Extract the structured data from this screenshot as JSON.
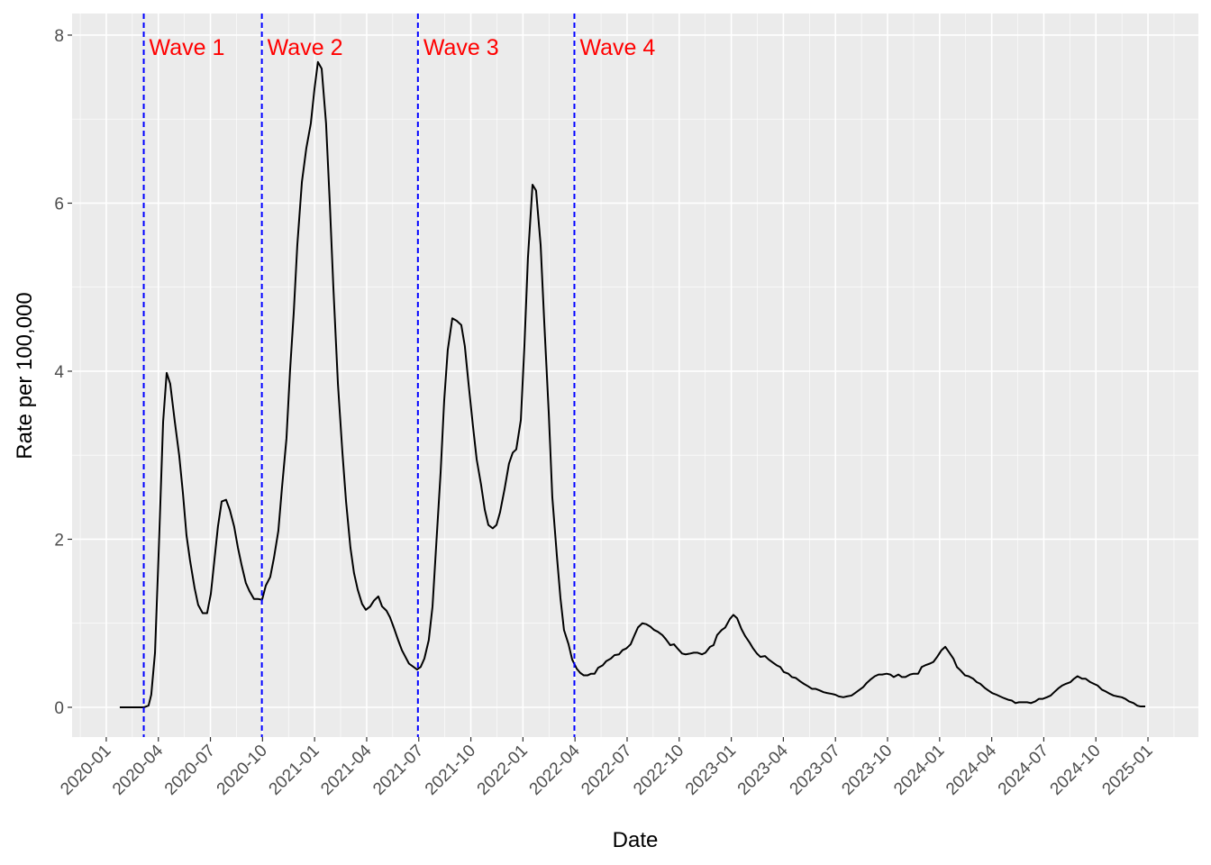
{
  "chart_data": {
    "type": "line",
    "x_label": "Date",
    "y_label": "Rate per 100,000",
    "xlim": [
      2019.836,
      2025.242
    ],
    "ylim": [
      -0.354,
      8.257
    ],
    "xticks": [
      {
        "value": 2020.0,
        "label": "2020-01"
      },
      {
        "value": 2020.25,
        "label": "2020-04"
      },
      {
        "value": 2020.5,
        "label": "2020-07"
      },
      {
        "value": 2020.75,
        "label": "2020-10"
      },
      {
        "value": 2021.0,
        "label": "2021-01"
      },
      {
        "value": 2021.25,
        "label": "2021-04"
      },
      {
        "value": 2021.5,
        "label": "2021-07"
      },
      {
        "value": 2021.75,
        "label": "2021-10"
      },
      {
        "value": 2022.0,
        "label": "2022-01"
      },
      {
        "value": 2022.25,
        "label": "2022-04"
      },
      {
        "value": 2022.5,
        "label": "2022-07"
      },
      {
        "value": 2022.75,
        "label": "2022-10"
      },
      {
        "value": 2023.0,
        "label": "2023-01"
      },
      {
        "value": 2023.25,
        "label": "2023-04"
      },
      {
        "value": 2023.5,
        "label": "2023-07"
      },
      {
        "value": 2023.75,
        "label": "2023-10"
      },
      {
        "value": 2024.0,
        "label": "2024-01"
      },
      {
        "value": 2024.25,
        "label": "2024-04"
      },
      {
        "value": 2024.5,
        "label": "2024-07"
      },
      {
        "value": 2024.75,
        "label": "2024-10"
      },
      {
        "value": 2025.0,
        "label": "2025-01"
      }
    ],
    "yticks": [
      0,
      2,
      4,
      6,
      8
    ],
    "grid": true,
    "color": "#000000",
    "vline_color": "#0000ff",
    "vline_label_color": "#ff0000",
    "vlines": [
      {
        "x": 2020.18,
        "label": "Wave 1"
      },
      {
        "x": 2020.747,
        "label": "Wave 2"
      },
      {
        "x": 2021.496,
        "label": "Wave 3"
      },
      {
        "x": 2022.247,
        "label": "Wave 4"
      }
    ],
    "x": [
      2020.065,
      2020.182,
      2020.203,
      2020.216,
      2020.234,
      2020.251,
      2020.273,
      2020.29,
      2020.307,
      2020.329,
      2020.35,
      2020.368,
      2020.385,
      2020.402,
      2020.424,
      2020.441,
      2020.463,
      2020.484,
      2020.502,
      2020.519,
      2020.536,
      2020.554,
      2020.575,
      2020.593,
      2020.614,
      2020.632,
      2020.649,
      2020.67,
      2020.688,
      2020.709,
      2020.727,
      2020.748,
      2020.766,
      2020.787,
      2020.805,
      2020.826,
      2020.843,
      2020.865,
      2020.882,
      2020.9,
      2020.917,
      2020.939,
      2020.96,
      2020.982,
      2020.999,
      2021.016,
      2021.034,
      2021.055,
      2021.073,
      2021.09,
      2021.112,
      2021.133,
      2021.151,
      2021.172,
      2021.189,
      2021.207,
      2021.228,
      2021.246,
      2021.267,
      2021.285,
      2021.306,
      2021.324,
      2021.345,
      2021.362,
      2021.38,
      2021.401,
      2021.419,
      2021.436,
      2021.453,
      2021.475,
      2021.492,
      2021.509,
      2021.527,
      2021.548,
      2021.566,
      2021.583,
      2021.605,
      2021.622,
      2021.639,
      2021.661,
      2021.682,
      2021.704,
      2021.721,
      2021.739,
      2021.76,
      2021.778,
      2021.799,
      2021.817,
      2021.834,
      2021.855,
      2021.873,
      2021.89,
      2021.912,
      2021.933,
      2021.951,
      2021.968,
      2021.99,
      2022.007,
      2022.024,
      2022.046,
      2022.063,
      2022.085,
      2022.102,
      2022.124,
      2022.141,
      2022.163,
      2022.18,
      2022.197,
      2022.219,
      2022.236,
      2022.258,
      2022.275,
      2022.292,
      2022.31,
      2022.327,
      2022.344,
      2022.361,
      2022.383,
      2022.4,
      2022.422,
      2022.439,
      2022.461,
      2022.478,
      2022.496,
      2022.517,
      2022.534,
      2022.552,
      2022.573,
      2022.591,
      2022.612,
      2022.63,
      2022.647,
      2022.669,
      2022.686,
      2022.707,
      2022.725,
      2022.742,
      2022.764,
      2022.781,
      2022.803,
      2022.82,
      2022.837,
      2022.859,
      2022.876,
      2022.898,
      2022.915,
      2022.932,
      2022.954,
      2022.971,
      2022.993,
      2023.01,
      2023.028,
      2023.049,
      2023.066,
      2023.088,
      2023.105,
      2023.123,
      2023.14,
      2023.162,
      2023.179,
      2023.201,
      2023.218,
      2023.235,
      2023.252,
      2023.274,
      2023.291,
      2023.309,
      2023.33,
      2023.348,
      2023.369,
      2023.387,
      2023.404,
      2023.425,
      2023.443,
      2023.46,
      2023.482,
      2023.499,
      2023.516,
      2023.538,
      2023.555,
      2023.577,
      2023.594,
      2023.611,
      2023.633,
      2023.65,
      2023.668,
      2023.689,
      2023.707,
      2023.724,
      2023.746,
      2023.763,
      2023.78,
      2023.802,
      2023.819,
      2023.836,
      2023.858,
      2023.875,
      2023.897,
      2023.914,
      2023.931,
      2023.953,
      2023.97,
      2023.988,
      2024.009,
      2024.027,
      2024.044,
      2024.066,
      2024.083,
      2024.1,
      2024.122,
      2024.139,
      2024.161,
      2024.178,
      2024.195,
      2024.217,
      2024.234,
      2024.252,
      2024.273,
      2024.29,
      2024.308,
      2024.329,
      2024.347,
      2024.364,
      2024.381,
      2024.403,
      2024.42,
      2024.438,
      2024.459,
      2024.476,
      2024.494,
      2024.515,
      2024.533,
      2024.55,
      2024.572,
      2024.589,
      2024.606,
      2024.628,
      2024.645,
      2024.662,
      2024.684,
      2024.701,
      2024.723,
      2024.74,
      2024.758,
      2024.779,
      2024.796,
      2024.818,
      2024.835,
      2024.853,
      2024.874,
      2024.892,
      2024.909,
      2024.931,
      2024.948,
      2024.965,
      2024.987
    ],
    "values": [
      0,
      0,
      0.02,
      0.15,
      0.65,
      1.8,
      3.4,
      3.98,
      3.85,
      3.4,
      3.0,
      2.55,
      2.05,
      1.75,
      1.42,
      1.22,
      1.12,
      1.12,
      1.35,
      1.75,
      2.15,
      2.45,
      2.47,
      2.35,
      2.15,
      1.9,
      1.7,
      1.48,
      1.38,
      1.29,
      1.29,
      1.28,
      1.45,
      1.55,
      1.78,
      2.1,
      2.6,
      3.2,
      4.0,
      4.7,
      5.5,
      6.25,
      6.65,
      6.95,
      7.35,
      7.68,
      7.6,
      6.95,
      6.0,
      5.0,
      3.85,
      3.05,
      2.45,
      1.9,
      1.6,
      1.4,
      1.23,
      1.16,
      1.2,
      1.27,
      1.32,
      1.2,
      1.15,
      1.07,
      0.95,
      0.8,
      0.68,
      0.6,
      0.52,
      0.48,
      0.45,
      0.48,
      0.58,
      0.8,
      1.2,
      1.9,
      2.8,
      3.65,
      4.25,
      4.63,
      4.6,
      4.55,
      4.3,
      3.85,
      3.35,
      2.95,
      2.65,
      2.35,
      2.17,
      2.13,
      2.17,
      2.32,
      2.6,
      2.9,
      3.03,
      3.07,
      3.42,
      4.3,
      5.35,
      6.22,
      6.15,
      5.5,
      4.6,
      3.5,
      2.5,
      1.8,
      1.3,
      0.92,
      0.75,
      0.57,
      0.46,
      0.41,
      0.38,
      0.38,
      0.4,
      0.4,
      0.47,
      0.5,
      0.55,
      0.58,
      0.62,
      0.63,
      0.68,
      0.7,
      0.75,
      0.85,
      0.95,
      1.0,
      0.99,
      0.96,
      0.92,
      0.9,
      0.86,
      0.81,
      0.74,
      0.75,
      0.7,
      0.64,
      0.63,
      0.64,
      0.65,
      0.65,
      0.63,
      0.65,
      0.72,
      0.74,
      0.86,
      0.92,
      0.95,
      1.05,
      1.1,
      1.06,
      0.93,
      0.85,
      0.77,
      0.7,
      0.64,
      0.6,
      0.61,
      0.57,
      0.53,
      0.5,
      0.48,
      0.42,
      0.4,
      0.36,
      0.35,
      0.31,
      0.28,
      0.25,
      0.22,
      0.22,
      0.2,
      0.18,
      0.17,
      0.16,
      0.15,
      0.13,
      0.12,
      0.13,
      0.14,
      0.17,
      0.2,
      0.24,
      0.29,
      0.33,
      0.37,
      0.39,
      0.39,
      0.4,
      0.39,
      0.36,
      0.39,
      0.36,
      0.36,
      0.39,
      0.4,
      0.4,
      0.48,
      0.5,
      0.52,
      0.54,
      0.6,
      0.68,
      0.72,
      0.66,
      0.58,
      0.48,
      0.44,
      0.38,
      0.37,
      0.34,
      0.3,
      0.28,
      0.23,
      0.2,
      0.17,
      0.15,
      0.13,
      0.11,
      0.09,
      0.08,
      0.05,
      0.06,
      0.06,
      0.06,
      0.05,
      0.07,
      0.1,
      0.1,
      0.12,
      0.14,
      0.18,
      0.23,
      0.26,
      0.28,
      0.3,
      0.34,
      0.37,
      0.34,
      0.34,
      0.3,
      0.28,
      0.26,
      0.21,
      0.19,
      0.16,
      0.14,
      0.13,
      0.12,
      0.1,
      0.07,
      0.05,
      0.02,
      0.01,
      0.01
    ]
  }
}
